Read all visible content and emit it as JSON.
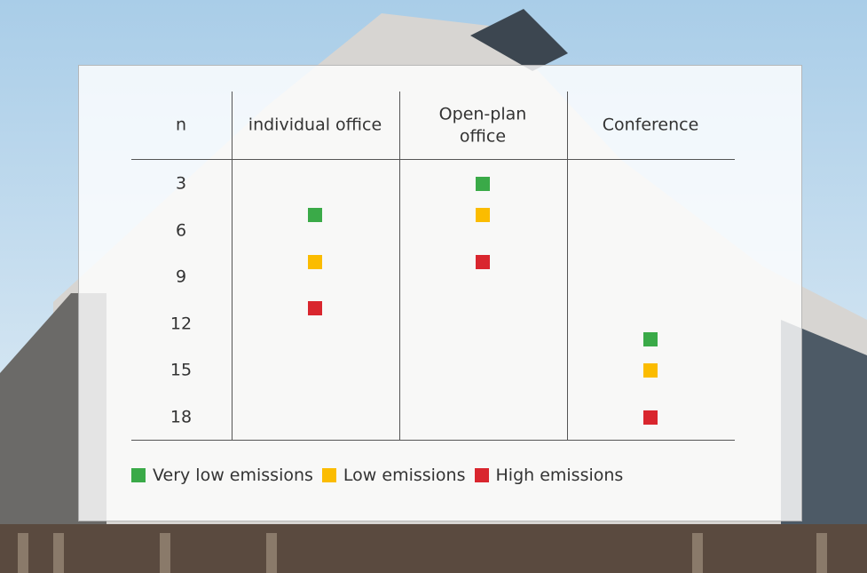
{
  "table": {
    "header": [
      "n",
      "individual office",
      "Open-plan office",
      "Conference"
    ],
    "n_values": [
      3,
      6,
      9,
      12,
      15,
      18
    ],
    "columns": [
      {
        "markers": [
          5,
          8,
          11
        ]
      },
      {
        "markers": [
          3,
          5,
          8
        ]
      },
      {
        "markers": [
          13,
          15,
          18
        ]
      }
    ]
  },
  "legend": [
    {
      "label": "Very low emissions",
      "color": "#3aaa48"
    },
    {
      "label": "Low emissions",
      "color": "#fbbc00"
    },
    {
      "label": "High emissions",
      "color": "#d9262e"
    }
  ]
}
